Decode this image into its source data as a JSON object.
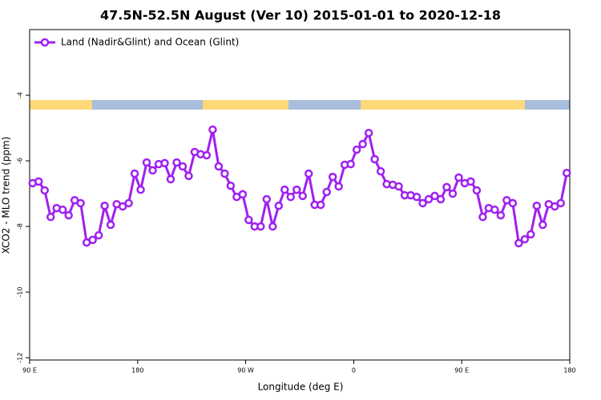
{
  "chart_data": {
    "type": "line",
    "title": "47.5N-52.5N August (Ver 10)   2015-01-01 to 2020-12-18",
    "x_label": "Longitude (deg E)",
    "y_label": "XCO2 - MLO trend (ppm)",
    "legend_position": "top-left",
    "xlim": [
      90,
      540
    ],
    "ylim": [
      -12.07,
      -2
    ],
    "xticks": [
      {
        "value": 90,
        "label": "90 E"
      },
      180,
      {
        "value": 270,
        "label": "90 W"
      },
      {
        "value": 360,
        "label": "0"
      },
      {
        "value": 450,
        "label": "90 E"
      },
      {
        "value": 540,
        "label": "180"
      }
    ],
    "yticks": [
      -4,
      -6,
      -8,
      -10,
      -12
    ],
    "x": [
      92.5,
      97.5,
      102.5,
      107.5,
      112.5,
      117.5,
      122.5,
      127.5,
      132.5,
      137.5,
      142.5,
      147.5,
      152.5,
      157.5,
      162.5,
      167.5,
      172.5,
      177.5,
      182.5,
      187.5,
      192.5,
      197.5,
      202.5,
      207.5,
      212.5,
      217.5,
      222.5,
      227.5,
      232.5,
      237.5,
      242.5,
      247.5,
      252.5,
      257.5,
      262.5,
      267.5,
      272.5,
      277.5,
      282.5,
      287.5,
      292.5,
      297.5,
      302.5,
      307.5,
      312.5,
      317.5,
      322.5,
      327.5,
      332.5,
      337.5,
      342.5,
      347.5,
      352.5,
      357.5,
      362.5,
      367.5,
      372.5,
      377.5,
      382.5,
      387.5,
      392.5,
      397.5,
      402.5,
      407.5,
      412.5,
      417.5,
      422.5,
      427.5,
      432.5,
      437.5,
      442.5,
      447.5,
      452.5,
      457.5,
      462.5,
      467.5,
      472.5,
      477.5,
      482.5,
      487.5,
      492.5,
      497.5,
      502.5,
      507.5,
      512.5,
      517.5,
      522.5,
      527.5,
      532.5,
      537.5
    ],
    "series": [
      {
        "name": "Land (Nadir&Glint) and Ocean (Glint)",
        "color": "#a020f0",
        "values": [
          -6.68,
          -6.63,
          -6.9,
          -7.71,
          -7.44,
          -7.49,
          -7.66,
          -7.2,
          -7.29,
          -8.49,
          -8.41,
          -8.27,
          -7.37,
          -7.95,
          -7.32,
          -7.39,
          -7.29,
          -6.39,
          -6.88,
          -6.05,
          -6.29,
          -6.1,
          -6.07,
          -6.56,
          -6.05,
          -6.17,
          -6.46,
          -5.73,
          -5.8,
          -5.83,
          -5.05,
          -6.17,
          -6.39,
          -6.76,
          -7.1,
          -7.02,
          -7.8,
          -8.0,
          -8.0,
          -7.17,
          -8.0,
          -7.37,
          -6.88,
          -7.1,
          -6.88,
          -7.07,
          -6.39,
          -7.34,
          -7.34,
          -6.95,
          -6.49,
          -6.78,
          -6.12,
          -6.1,
          -5.66,
          -5.49,
          -5.15,
          -5.95,
          -6.32,
          -6.71,
          -6.73,
          -6.78,
          -7.05,
          -7.05,
          -7.1,
          -7.29,
          -7.17,
          -7.07,
          -7.17,
          -6.8,
          -7.0,
          -6.51,
          -6.68,
          -6.63,
          -6.9,
          -7.71,
          -7.44,
          -7.49,
          -7.66,
          -7.2,
          -7.29,
          -8.51,
          -8.39,
          -8.24,
          -7.37,
          -7.95,
          -7.32,
          -7.39,
          -7.29,
          -6.37
        ]
      }
    ]
  }
}
